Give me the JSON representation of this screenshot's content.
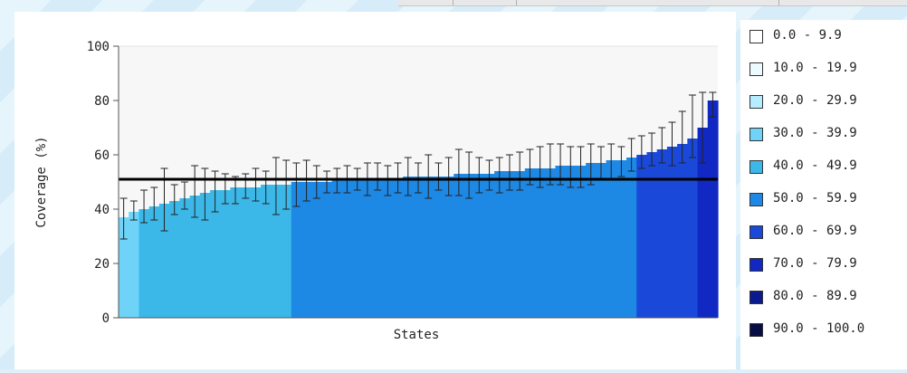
{
  "chart_data": {
    "type": "bar",
    "xlabel": "States",
    "ylabel": "Coverage (%)",
    "ylim": [
      0,
      100
    ],
    "yticks": [
      "0",
      "20",
      "40",
      "60",
      "80",
      "100"
    ],
    "grid": false,
    "legend_position": "right",
    "reference_line": 51,
    "bar_colors": [
      "#6ed3f7",
      "#3cb8e8",
      "#1e88e5",
      "#1a49d9",
      "#1228c2"
    ],
    "values": [
      37,
      39,
      40,
      41,
      42,
      43,
      44,
      45,
      46,
      47,
      47,
      48,
      48,
      48,
      49,
      49,
      49,
      50,
      50,
      50,
      50,
      51,
      51,
      51,
      51,
      51,
      51,
      51,
      52,
      52,
      52,
      52,
      52,
      53,
      53,
      53,
      53,
      54,
      54,
      54,
      55,
      55,
      55,
      56,
      56,
      56,
      57,
      57,
      58,
      58,
      59,
      60,
      61,
      62,
      63,
      64,
      66,
      70,
      80
    ],
    "error_low": [
      29,
      36,
      35,
      36,
      32,
      38,
      40,
      37,
      36,
      39,
      42,
      42,
      44,
      43,
      42,
      38,
      40,
      41,
      43,
      44,
      46,
      46,
      46,
      47,
      45,
      47,
      45,
      46,
      45,
      46,
      44,
      47,
      45,
      45,
      44,
      46,
      47,
      46,
      47,
      47,
      49,
      48,
      49,
      49,
      48,
      48,
      49,
      51,
      51,
      52,
      54,
      55,
      56,
      57,
      56,
      57,
      59,
      57,
      74
    ],
    "error_high": [
      44,
      43,
      47,
      48,
      55,
      49,
      50,
      56,
      55,
      54,
      53,
      52,
      53,
      55,
      54,
      59,
      58,
      57,
      58,
      56,
      54,
      55,
      56,
      55,
      57,
      57,
      56,
      57,
      59,
      57,
      60,
      57,
      59,
      62,
      61,
      59,
      58,
      59,
      60,
      61,
      62,
      63,
      64,
      64,
      63,
      63,
      64,
      63,
      64,
      63,
      66,
      67,
      68,
      70,
      72,
      76,
      82,
      83,
      83
    ]
  },
  "legend": {
    "items": [
      {
        "label": "0.0 - 9.9",
        "color": "#ffffff"
      },
      {
        "label": "10.0 - 19.9",
        "color": "#ecfbff"
      },
      {
        "label": "20.0 - 29.9",
        "color": "#b5edff"
      },
      {
        "label": "30.0 - 39.9",
        "color": "#6ed3f7"
      },
      {
        "label": "40.0 - 49.9",
        "color": "#3cb8e8"
      },
      {
        "label": "50.0 - 59.9",
        "color": "#1e88e5"
      },
      {
        "label": "60.0 - 69.9",
        "color": "#1a49d9"
      },
      {
        "label": "70.0 - 79.9",
        "color": "#1228c2"
      },
      {
        "label": "80.0 - 89.9",
        "color": "#0b1a8c"
      },
      {
        "label": "90.0 - 100.0",
        "color": "#080e44"
      }
    ]
  }
}
